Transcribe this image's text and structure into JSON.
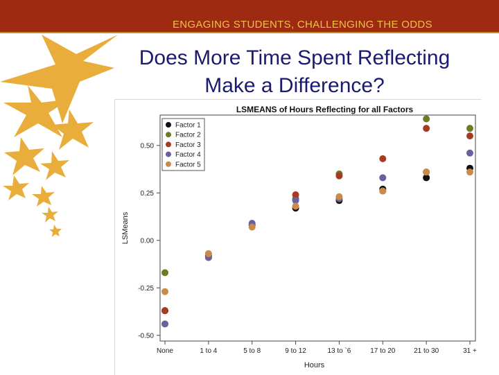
{
  "header": {
    "tagline": "ENGAGING STUDENTS, CHALLENGING THE ODDS",
    "title_line1": "Does More Time Spent Reflecting",
    "title_line2": "Make a Difference?"
  },
  "colors": {
    "header_bg": "#9e2a12",
    "tagline": "#f2c04a",
    "title": "#1a1a6e",
    "star": "#e8ad3a"
  },
  "chart_data": {
    "type": "scatter",
    "title": "LSMEANS of Hours Reflecting for all Factors",
    "xlabel": "Hours",
    "ylabel": "LSMeans",
    "categories": [
      "None",
      "1 to 4",
      "5 to 8",
      "9 to 12",
      "13 to `6",
      "17 to 20",
      "21 to 30",
      "31 +"
    ],
    "ylim": [
      -0.53,
      0.66
    ],
    "yticks": [
      -0.5,
      -0.25,
      0.0,
      0.25,
      0.5
    ],
    "ytick_labels": [
      "-0.50",
      "-0.25",
      "0.00",
      "0.25",
      "0.50"
    ],
    "legend_position": "top-left",
    "series": [
      {
        "name": "Factor 1",
        "color": "#111111",
        "values": [
          -0.37,
          -0.08,
          0.08,
          0.17,
          0.21,
          0.27,
          0.33,
          0.38
        ]
      },
      {
        "name": "Factor 2",
        "color": "#6b7d22",
        "values": [
          -0.17,
          -0.07,
          0.08,
          0.22,
          0.35,
          0.26,
          0.64,
          0.59
        ]
      },
      {
        "name": "Factor 3",
        "color": "#a63a25",
        "values": [
          -0.37,
          -0.09,
          0.08,
          0.24,
          0.34,
          0.43,
          0.59,
          0.55
        ]
      },
      {
        "name": "Factor 4",
        "color": "#6a5fa0",
        "values": [
          -0.44,
          -0.09,
          0.09,
          0.21,
          0.22,
          0.33,
          0.36,
          0.46
        ]
      },
      {
        "name": "Factor 5",
        "color": "#c98a4a",
        "values": [
          -0.27,
          -0.07,
          0.07,
          0.18,
          0.23,
          0.26,
          0.36,
          0.36
        ]
      }
    ]
  }
}
